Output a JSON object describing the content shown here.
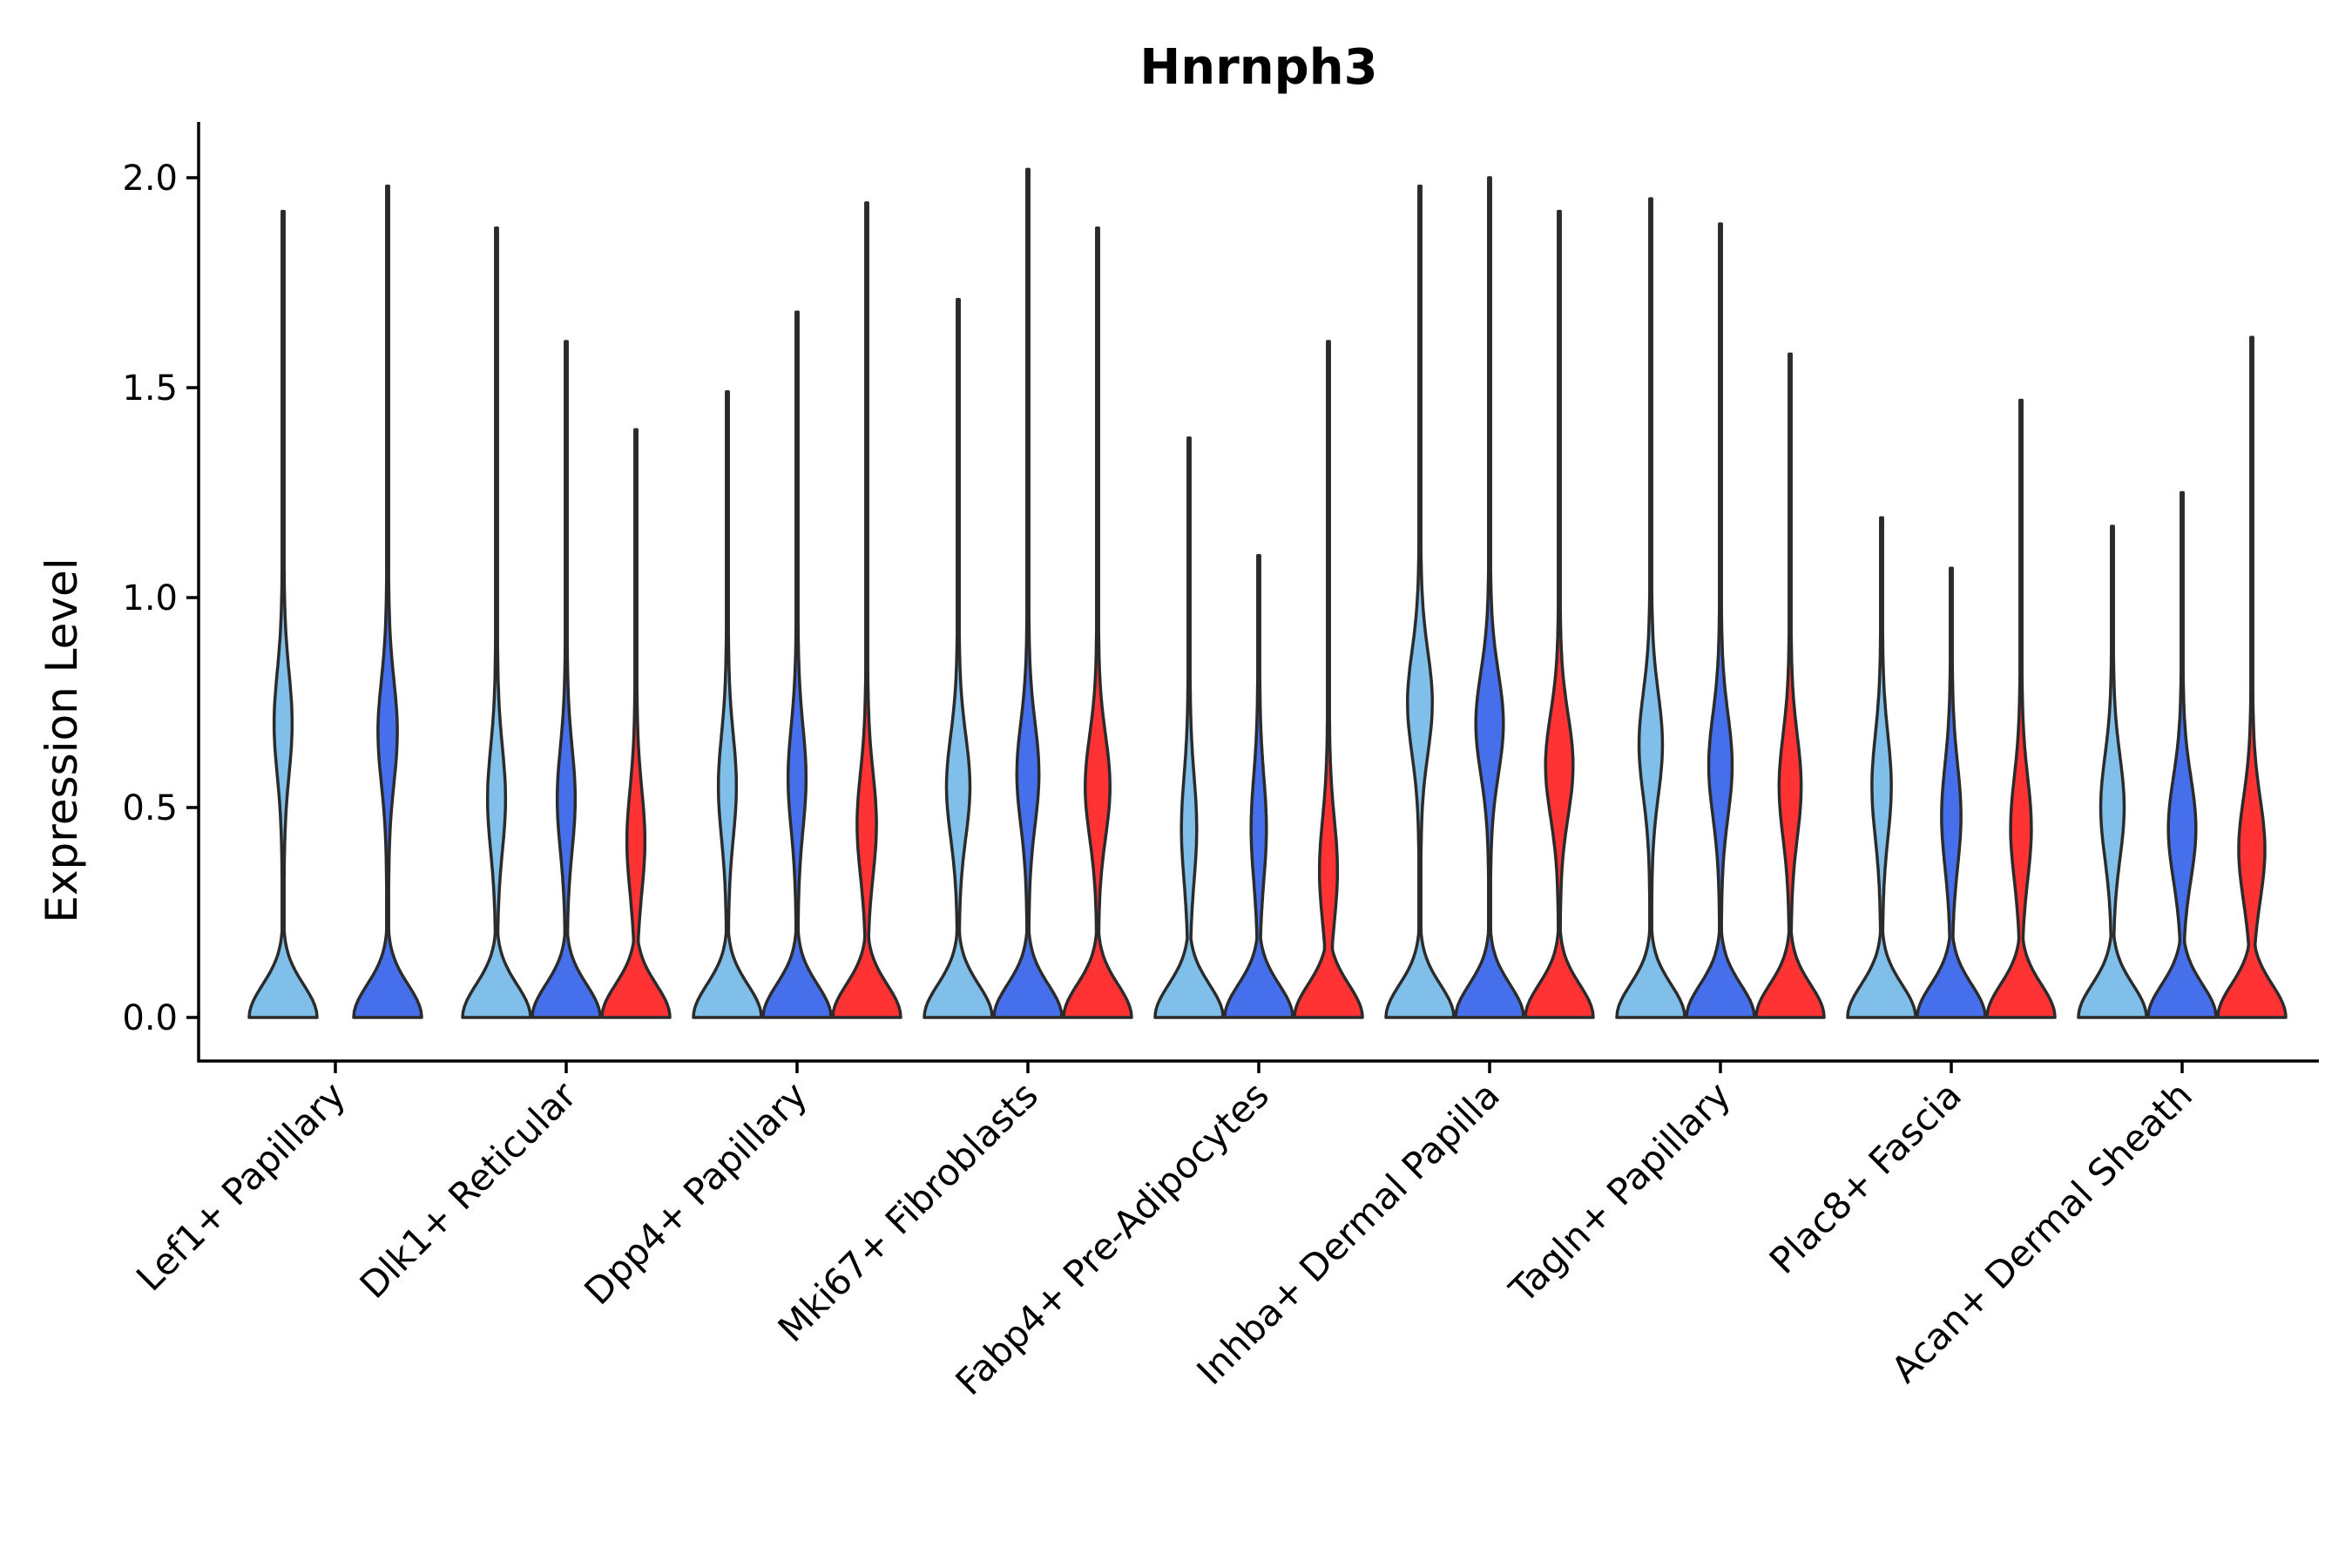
{
  "chart_data": {
    "type": "violin",
    "title": "Hnrnph3",
    "xlabel": "",
    "ylabel": "Expression Level",
    "ylim": [
      -0.1,
      2.13
    ],
    "yticks": [
      0.0,
      0.5,
      1.0,
      1.5,
      2.0
    ],
    "ytick_labels": [
      "0.0",
      "0.5",
      "1.0",
      "1.5",
      "2.0"
    ],
    "group_colors": [
      "#7fbfea",
      "#4670eb",
      "#ff3333"
    ],
    "categories": [
      {
        "name": "Lef1+ Papillary",
        "violins": [
          {
            "group": 0,
            "max": 1.92,
            "mode_high": 0.7,
            "spread": 0.22
          },
          {
            "group": 1,
            "max": 1.98,
            "mode_high": 0.68,
            "spread": 0.24
          }
        ]
      },
      {
        "name": "Dlk1+ Reticular",
        "violins": [
          {
            "group": 0,
            "max": 1.88,
            "mode_high": 0.52,
            "spread": 0.22
          },
          {
            "group": 1,
            "max": 1.61,
            "mode_high": 0.52,
            "spread": 0.22
          },
          {
            "group": 2,
            "max": 1.4,
            "mode_high": 0.42,
            "spread": 0.22
          }
        ]
      },
      {
        "name": "Dpp4+ Papillary",
        "violins": [
          {
            "group": 0,
            "max": 1.49,
            "mode_high": 0.55,
            "spread": 0.22
          },
          {
            "group": 1,
            "max": 1.68,
            "mode_high": 0.57,
            "spread": 0.22
          },
          {
            "group": 2,
            "max": 1.94,
            "mode_high": 0.46,
            "spread": 0.24
          }
        ]
      },
      {
        "name": "Mki67+ Fibroblasts",
        "violins": [
          {
            "group": 0,
            "max": 1.71,
            "mode_high": 0.55,
            "spread": 0.3
          },
          {
            "group": 1,
            "max": 2.02,
            "mode_high": 0.58,
            "spread": 0.28
          },
          {
            "group": 2,
            "max": 1.88,
            "mode_high": 0.55,
            "spread": 0.32
          }
        ]
      },
      {
        "name": "Fabp4+ Pre-Adipocytes",
        "violins": [
          {
            "group": 0,
            "max": 1.38,
            "mode_high": 0.45,
            "spread": 0.18
          },
          {
            "group": 1,
            "max": 1.1,
            "mode_high": 0.45,
            "spread": 0.18
          },
          {
            "group": 2,
            "max": 1.61,
            "mode_high": 0.35,
            "spread": 0.22
          }
        ]
      },
      {
        "name": "Inhba+ Dermal Papilla",
        "violins": [
          {
            "group": 0,
            "max": 1.98,
            "mode_high": 0.75,
            "spread": 0.32
          },
          {
            "group": 1,
            "max": 2.0,
            "mode_high": 0.7,
            "spread": 0.36
          },
          {
            "group": 2,
            "max": 1.92,
            "mode_high": 0.6,
            "spread": 0.36
          }
        ]
      },
      {
        "name": "Tagln+ Papillary",
        "violins": [
          {
            "group": 0,
            "max": 1.95,
            "mode_high": 0.65,
            "spread": 0.3
          },
          {
            "group": 1,
            "max": 1.89,
            "mode_high": 0.6,
            "spread": 0.3
          },
          {
            "group": 2,
            "max": 1.58,
            "mode_high": 0.55,
            "spread": 0.28
          }
        ]
      },
      {
        "name": "Plac8+ Fascia",
        "violins": [
          {
            "group": 0,
            "max": 1.19,
            "mode_high": 0.55,
            "spread": 0.24
          },
          {
            "group": 1,
            "max": 1.07,
            "mode_high": 0.48,
            "spread": 0.24
          },
          {
            "group": 2,
            "max": 1.47,
            "mode_high": 0.45,
            "spread": 0.26
          }
        ]
      },
      {
        "name": "Acan+ Dermal Sheath",
        "violins": [
          {
            "group": 0,
            "max": 1.17,
            "mode_high": 0.5,
            "spread": 0.3
          },
          {
            "group": 1,
            "max": 1.25,
            "mode_high": 0.45,
            "spread": 0.36
          },
          {
            "group": 2,
            "max": 1.62,
            "mode_high": 0.4,
            "spread": 0.34
          }
        ]
      }
    ]
  }
}
